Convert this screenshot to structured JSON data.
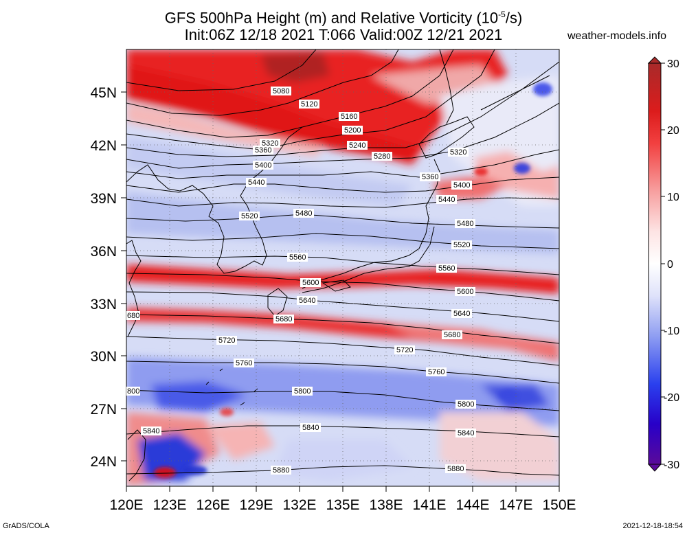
{
  "header": {
    "title_line1_pre": "GFS 500hPa Height (m) and Relative Vorticity (10",
    "title_line1_sup": "-5",
    "title_line1_post": "/s)",
    "title_line2": "Init:06Z 12/18 2021 T:066 Valid:00Z 12/21 2021",
    "site": "weather-models.info"
  },
  "footer": {
    "left": "GrADS/COLA",
    "right": "2021-12-18-18:54"
  },
  "axes": {
    "lat_labels": [
      "45N",
      "42N",
      "39N",
      "36N",
      "33N",
      "30N",
      "27N",
      "24N"
    ],
    "lon_labels": [
      "120E",
      "123E",
      "126E",
      "129E",
      "132E",
      "135E",
      "138E",
      "141E",
      "144E",
      "147E",
      "150E"
    ]
  },
  "colorbar": {
    "labels": [
      "30",
      "20",
      "10",
      "0",
      "-10",
      "-20",
      "-30"
    ],
    "colors": [
      "#5a0a9a",
      "#2a00d0",
      "#3a5af0",
      "#9aaaf4",
      "#d8dcf8",
      "#ffffff",
      "#fcd0d0",
      "#f47878",
      "#e81e1e",
      "#c81414",
      "#a02828"
    ]
  },
  "contour_labels": {
    "l5080": "5080",
    "l5120": "5120",
    "l5160": "5160",
    "l5200": "5200",
    "l5240": "5240",
    "l5280": "5280",
    "l5320a": "5320",
    "l5320b": "5320",
    "l5360a": "5360",
    "l5360b": "5360",
    "l5400a": "5400",
    "l5400b": "5400",
    "l5440a": "5440",
    "l5440b": "5440",
    "l5480a": "5480",
    "l5480b": "5480",
    "l5520a": "5520",
    "l5520b": "5520",
    "l5560a": "5560",
    "l5560b": "5560",
    "l5600a": "5600",
    "l5600b": "5600",
    "l5640a": "5640",
    "l5640b": "5640",
    "l5680a": "5680",
    "l5680b": "5680",
    "l5680c": "680",
    "l5720a": "5720",
    "l5720b": "5720",
    "l5760a": "5760",
    "l5760b": "5760",
    "l5800a": "5800",
    "l5800b": "5800",
    "l5800c": "800",
    "l5840a": "5840",
    "l5840b": "5840",
    "l5840c": "5840",
    "l5880a": "5880",
    "l5880b": "5880"
  }
}
